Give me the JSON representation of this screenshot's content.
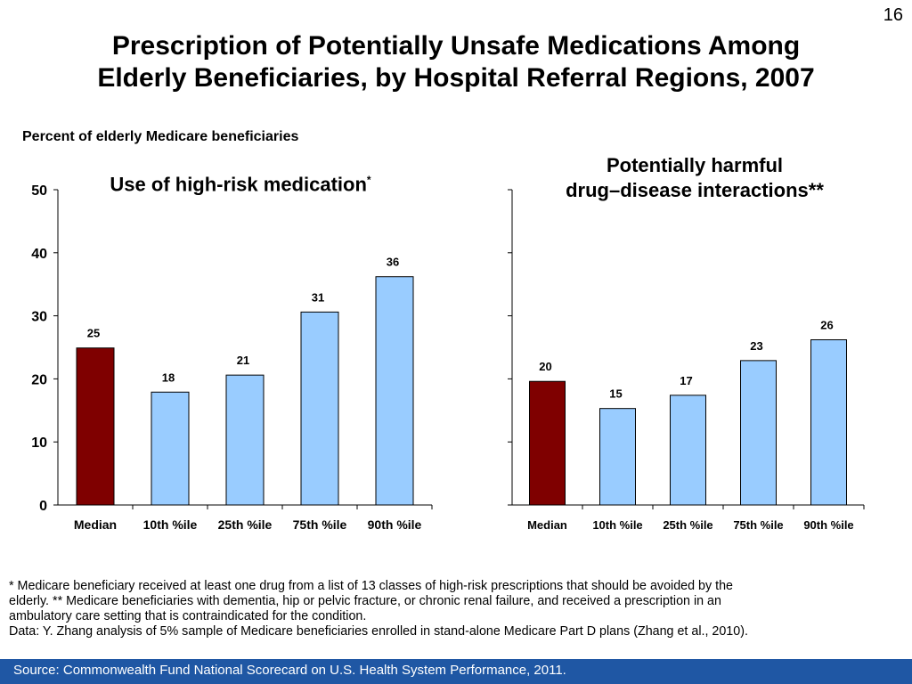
{
  "slide_number": "16",
  "title_line1": "Prescription of Potentially Unsafe Medications Among",
  "title_line2": "Elderly Beneficiaries, by Hospital Referral Regions, 2007",
  "unit_label": "Percent of elderly Medicare beneficiaries",
  "colors": {
    "median": "#7f0000",
    "percentile": "#99ccff",
    "source_bar": "#1f57a4"
  },
  "chart_data": [
    {
      "type": "bar",
      "title": "Use of high-risk medication",
      "title_marker": "*",
      "categories": [
        "Median",
        "10th %ile",
        "25th %ile",
        "75th %ile",
        "90th %ile"
      ],
      "values": [
        25,
        18,
        21,
        31,
        36
      ],
      "bar_values": [
        24.9,
        17.9,
        20.6,
        30.6,
        36.2
      ],
      "ylim": [
        0,
        50
      ],
      "yticks": [
        0,
        10,
        20,
        30,
        40,
        50
      ],
      "xlabel": "",
      "ylabel": "",
      "grid": false
    },
    {
      "type": "bar",
      "title_line1": "Potentially harmful",
      "title_line2": "drug–disease interactions**",
      "categories": [
        "Median",
        "10th %ile",
        "25th %ile",
        "75th %ile",
        "90th %ile"
      ],
      "values": [
        20,
        15,
        17,
        23,
        26
      ],
      "bar_values": [
        19.6,
        15.3,
        17.4,
        22.9,
        26.2
      ],
      "ylim": [
        0,
        50
      ],
      "xlabel": "",
      "ylabel": "",
      "grid": false
    }
  ],
  "footnote_line1": "* Medicare beneficiary received at least one drug from a list of 13 classes of high-risk prescriptions that should be avoided by the",
  "footnote_line2": "elderly. ** Medicare beneficiaries with dementia, hip or pelvic fracture, or chronic renal failure, and received a prescription in an",
  "footnote_line3": "ambulatory care setting that is contraindicated for the condition.",
  "footnote_line4": "Data: Y. Zhang analysis of 5% sample of Medicare beneficiaries enrolled in stand-alone Medicare Part D plans (Zhang et al., 2010).",
  "source": "Source: Commonwealth Fund National Scorecard on U.S. Health System Performance, 2011."
}
